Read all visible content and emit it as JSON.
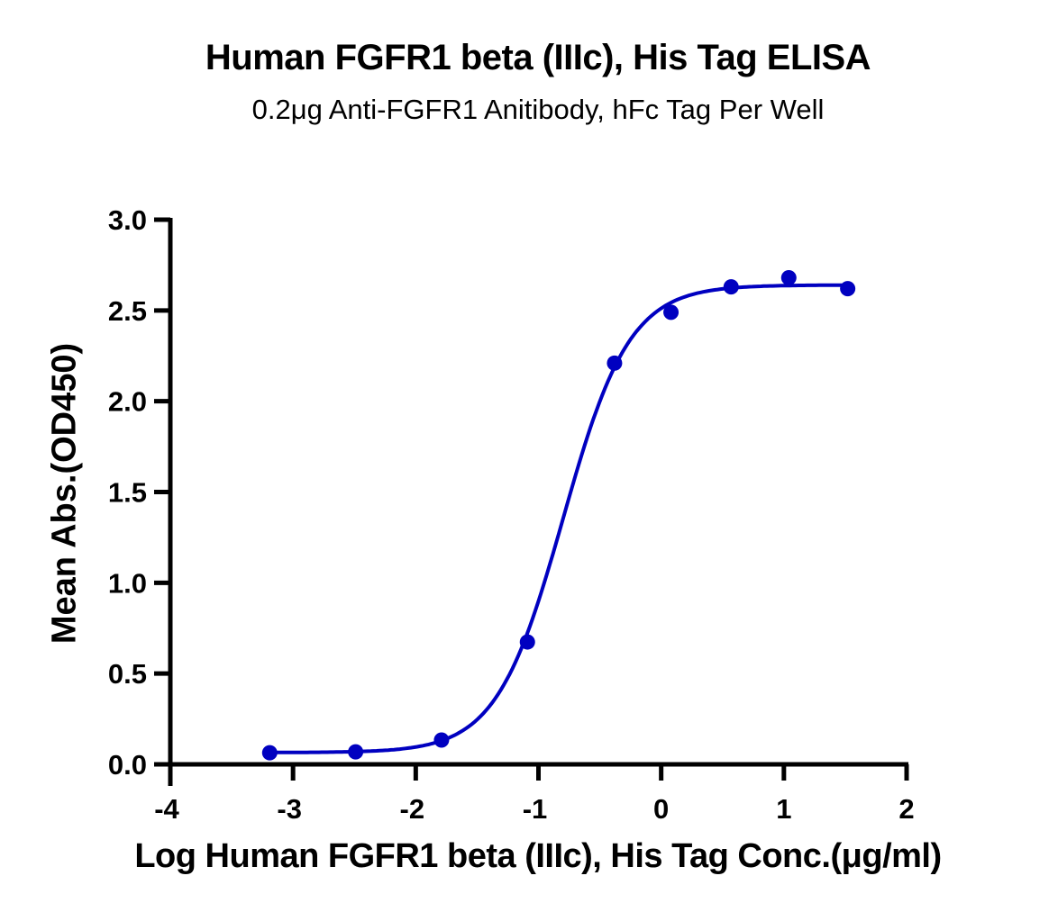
{
  "chart_data": {
    "type": "scatter",
    "title": "Human FGFR1 beta (IIIc), His Tag ELISA",
    "subtitle": "0.2μg Anti-FGFR1 Anitibody, hFc Tag Per Well",
    "xlabel": "Log Human FGFR1 beta (IIIc), His Tag Conc.(μg/ml)",
    "ylabel": "Mean Abs.(OD450)",
    "xlim": [
      -4,
      2
    ],
    "ylim": [
      0,
      3.0
    ],
    "x_ticks": [
      "-4",
      "-3",
      "-2",
      "-1",
      "0",
      "1",
      "2"
    ],
    "y_ticks": [
      "0.0",
      "0.5",
      "1.0",
      "1.5",
      "2.0",
      "2.5",
      "3.0"
    ],
    "grid": false,
    "legend": null,
    "series": [
      {
        "name": "Human FGFR1 beta (IIIc), His Tag",
        "color": "#0000c0",
        "marker": "circle",
        "x": [
          -3.19,
          -2.49,
          -1.79,
          -1.09,
          -0.38,
          0.08,
          0.57,
          1.04,
          1.52
        ],
        "y": [
          0.064,
          0.069,
          0.134,
          0.674,
          2.21,
          2.49,
          2.63,
          2.68,
          2.62
        ]
      }
    ],
    "fit": {
      "type": "4PL",
      "color": "#0000c0",
      "bottom": 0.065,
      "top": 2.64,
      "log_ec50": -0.8,
      "hill_slope": 1.6,
      "x_range": [
        -3.19,
        1.52
      ]
    }
  }
}
